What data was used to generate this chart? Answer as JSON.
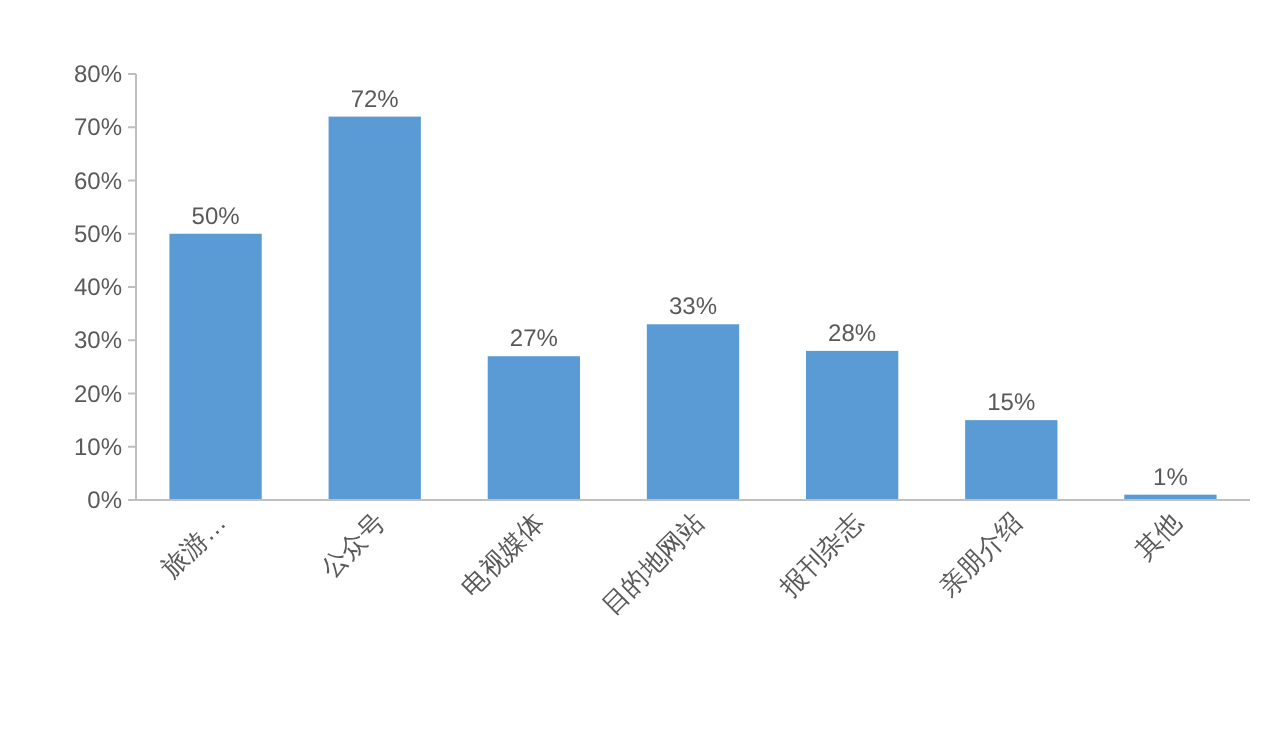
{
  "chart_data": {
    "type": "bar",
    "categories": [
      "旅游…",
      "公众号",
      "电视媒体",
      "目的地网站",
      "报刊杂志",
      "亲朋介绍",
      "其他"
    ],
    "values": [
      50,
      72,
      27,
      33,
      28,
      15,
      1
    ],
    "value_labels": [
      "50%",
      "72%",
      "27%",
      "33%",
      "28%",
      "15%",
      "1%"
    ],
    "color": "#5b9bd5",
    "ylim": [
      0,
      80
    ],
    "yticks": [
      {
        "value": 0,
        "label": "0%"
      },
      {
        "value": 10,
        "label": "10%"
      },
      {
        "value": 20,
        "label": "20%"
      },
      {
        "value": 30,
        "label": "30%"
      },
      {
        "value": 40,
        "label": "40%"
      },
      {
        "value": 50,
        "label": "50%"
      },
      {
        "value": 60,
        "label": "60%"
      },
      {
        "value": 70,
        "label": "70%"
      },
      {
        "value": 80,
        "label": "80%"
      }
    ],
    "grid": false
  }
}
